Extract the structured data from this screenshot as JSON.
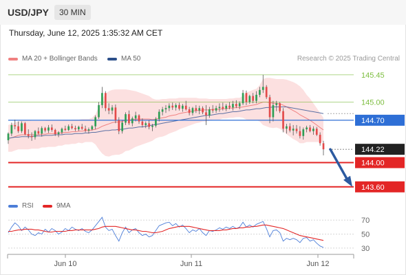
{
  "header": {
    "pair": "USD/JPY",
    "timeframe": "30 MIN"
  },
  "datetime": "Thursday, June 12, 2025 1:35:32 AM CET",
  "legend": {
    "ma20": {
      "label": "MA 20 + Bollinger Bands",
      "color": "#f08080"
    },
    "ma50": {
      "label": "MA 50",
      "color": "#2c4f8a"
    }
  },
  "copyright": "Research © 2025 Trading Central",
  "rsi_legend": {
    "rsi": {
      "label": "RSI",
      "color": "#4d7ed8"
    },
    "ma": {
      "label": "9MA",
      "color": "#e32626"
    }
  },
  "chart_data": [
    {
      "type": "candlestick",
      "title": "USD/JPY",
      "x_labels": [
        "Jun 10",
        "Jun 11",
        "Jun 12"
      ],
      "ylim": [
        143.45,
        145.55
      ],
      "levels": [
        {
          "label": "145.45",
          "value": 145.45,
          "color": "#7cbd3e",
          "kind": "resistance"
        },
        {
          "label": "145.00",
          "value": 145.0,
          "color": "#7cbd3e",
          "kind": "resistance"
        },
        {
          "label": "144.70",
          "value": 144.7,
          "color": "#2e6fd6",
          "kind": "pivot"
        },
        {
          "label": "144.22",
          "value": 144.22,
          "color": "#222222",
          "kind": "last"
        },
        {
          "label": "144.00",
          "value": 144.0,
          "color": "#e32626",
          "kind": "target"
        },
        {
          "label": "143.60",
          "value": 143.6,
          "color": "#e32626",
          "kind": "target"
        }
      ],
      "candles": [
        [
          144.37,
          144.5,
          144.31,
          144.48
        ],
        [
          144.48,
          144.66,
          144.44,
          144.62
        ],
        [
          144.62,
          144.71,
          144.55,
          144.6
        ],
        [
          144.6,
          144.68,
          144.49,
          144.52
        ],
        [
          144.52,
          144.68,
          144.49,
          144.65
        ],
        [
          144.65,
          144.67,
          144.45,
          144.47
        ],
        [
          144.47,
          144.55,
          144.4,
          144.44
        ],
        [
          144.44,
          144.5,
          144.36,
          144.42
        ],
        [
          144.42,
          144.54,
          144.38,
          144.52
        ],
        [
          144.52,
          144.58,
          144.46,
          144.48
        ],
        [
          144.48,
          144.6,
          144.43,
          144.57
        ],
        [
          144.57,
          144.59,
          144.5,
          144.53
        ],
        [
          144.53,
          144.62,
          144.49,
          144.58
        ],
        [
          144.58,
          144.63,
          144.51,
          144.54
        ],
        [
          144.54,
          144.56,
          144.44,
          144.47
        ],
        [
          144.47,
          144.52,
          144.42,
          144.5
        ],
        [
          144.5,
          144.58,
          144.47,
          144.56
        ],
        [
          144.56,
          144.61,
          144.52,
          144.54
        ],
        [
          144.54,
          144.63,
          144.52,
          144.6
        ],
        [
          144.6,
          144.64,
          144.55,
          144.57
        ],
        [
          144.57,
          144.61,
          144.52,
          144.55
        ],
        [
          144.55,
          144.61,
          144.52,
          144.59
        ],
        [
          144.59,
          144.64,
          144.54,
          144.56
        ],
        [
          144.56,
          144.61,
          144.5,
          144.53
        ],
        [
          144.53,
          144.58,
          144.48,
          144.55
        ],
        [
          144.55,
          144.62,
          144.53,
          144.6
        ],
        [
          144.6,
          144.78,
          144.55,
          144.75
        ],
        [
          144.75,
          145.0,
          144.72,
          144.95
        ],
        [
          144.95,
          145.25,
          144.9,
          145.15
        ],
        [
          145.15,
          145.18,
          144.85,
          144.9
        ],
        [
          144.9,
          144.98,
          144.8,
          144.86
        ],
        [
          144.86,
          144.95,
          144.8,
          144.91
        ],
        [
          144.91,
          144.96,
          144.65,
          144.7
        ],
        [
          144.7,
          144.75,
          144.47,
          144.52
        ],
        [
          144.52,
          144.7,
          144.48,
          144.66
        ],
        [
          144.66,
          144.83,
          144.62,
          144.8
        ],
        [
          144.8,
          144.86,
          144.62,
          144.65
        ],
        [
          144.65,
          144.76,
          144.6,
          144.73
        ],
        [
          144.73,
          144.84,
          144.68,
          144.78
        ],
        [
          144.78,
          144.8,
          144.64,
          144.68
        ],
        [
          144.68,
          144.73,
          144.58,
          144.62
        ],
        [
          144.62,
          144.68,
          144.57,
          144.65
        ],
        [
          144.65,
          144.7,
          144.55,
          144.59
        ],
        [
          144.59,
          144.64,
          144.52,
          144.61
        ],
        [
          144.61,
          144.75,
          144.58,
          144.72
        ],
        [
          144.72,
          144.88,
          144.68,
          144.84
        ],
        [
          144.84,
          144.92,
          144.78,
          144.88
        ],
        [
          144.88,
          144.95,
          144.82,
          144.9
        ],
        [
          144.9,
          144.98,
          144.85,
          144.94
        ],
        [
          144.94,
          144.99,
          144.87,
          144.91
        ],
        [
          144.91,
          144.98,
          144.86,
          144.95
        ],
        [
          144.95,
          144.99,
          144.86,
          144.89
        ],
        [
          144.89,
          144.97,
          144.84,
          144.94
        ],
        [
          144.94,
          145.02,
          144.86,
          144.88
        ],
        [
          144.88,
          144.92,
          144.78,
          144.82
        ],
        [
          144.82,
          144.92,
          144.78,
          144.9
        ],
        [
          144.9,
          144.95,
          144.82,
          144.86
        ],
        [
          144.86,
          144.94,
          144.8,
          144.9
        ],
        [
          144.9,
          144.93,
          144.8,
          144.83
        ],
        [
          144.83,
          144.95,
          144.62,
          144.78
        ],
        [
          144.78,
          144.92,
          144.74,
          144.88
        ],
        [
          144.88,
          144.95,
          144.82,
          144.86
        ],
        [
          144.86,
          144.94,
          144.82,
          144.9
        ],
        [
          144.9,
          144.98,
          144.84,
          144.92
        ],
        [
          144.92,
          144.99,
          144.86,
          144.89
        ],
        [
          144.89,
          144.97,
          144.85,
          144.94
        ],
        [
          144.94,
          145.0,
          144.88,
          144.91
        ],
        [
          144.91,
          145.02,
          144.86,
          144.97
        ],
        [
          144.97,
          145.03,
          144.9,
          144.93
        ],
        [
          144.93,
          145.01,
          144.88,
          144.98
        ],
        [
          144.98,
          145.2,
          144.95,
          145.15
        ],
        [
          145.15,
          145.19,
          144.95,
          145.0
        ],
        [
          145.0,
          145.12,
          144.97,
          145.1
        ],
        [
          145.1,
          145.15,
          144.98,
          145.02
        ],
        [
          145.02,
          145.18,
          144.98,
          145.12
        ],
        [
          145.12,
          145.25,
          145.08,
          145.2
        ],
        [
          145.2,
          145.45,
          145.15,
          145.25
        ],
        [
          145.25,
          145.28,
          145.05,
          145.08
        ],
        [
          145.08,
          145.12,
          144.65,
          144.75
        ],
        [
          144.75,
          145.02,
          144.68,
          144.95
        ],
        [
          144.95,
          145.02,
          144.85,
          144.98
        ],
        [
          144.98,
          145.0,
          144.82,
          144.85
        ],
        [
          144.85,
          144.9,
          144.5,
          144.56
        ],
        [
          144.56,
          144.64,
          144.48,
          144.6
        ],
        [
          144.6,
          144.65,
          144.5,
          144.53
        ],
        [
          144.53,
          144.62,
          144.45,
          144.56
        ],
        [
          144.56,
          144.62,
          144.48,
          144.52
        ],
        [
          144.52,
          144.6,
          144.4,
          144.44
        ],
        [
          144.44,
          144.58,
          144.38,
          144.55
        ],
        [
          144.55,
          144.61,
          144.5,
          144.58
        ],
        [
          144.58,
          144.62,
          144.5,
          144.52
        ],
        [
          144.52,
          144.6,
          144.46,
          144.56
        ],
        [
          144.56,
          144.59,
          144.44,
          144.46
        ],
        [
          144.46,
          144.5,
          144.28,
          144.32
        ],
        [
          144.32,
          144.36,
          144.12,
          144.22
        ]
      ],
      "ma20": [
        144.4,
        144.41,
        144.43,
        144.45,
        144.46,
        144.46,
        144.46,
        144.46,
        144.46,
        144.46,
        144.47,
        144.47,
        144.48,
        144.48,
        144.48,
        144.49,
        144.49,
        144.5,
        144.5,
        144.51,
        144.51,
        144.52,
        144.52,
        144.53,
        144.53,
        144.54,
        144.55,
        144.57,
        144.6,
        144.62,
        144.64,
        144.66,
        144.67,
        144.67,
        144.68,
        144.7,
        144.7,
        144.71,
        144.72,
        144.72,
        144.72,
        144.72,
        144.72,
        144.71,
        144.72,
        144.73,
        144.74,
        144.75,
        144.77,
        144.78,
        144.79,
        144.81,
        144.82,
        144.83,
        144.84,
        144.85,
        144.86,
        144.86,
        144.87,
        144.87,
        144.87,
        144.88,
        144.88,
        144.88,
        144.89,
        144.89,
        144.9,
        144.9,
        144.91,
        144.91,
        144.92,
        144.93,
        144.94,
        144.95,
        144.96,
        144.98,
        145.0,
        145.0,
        144.99,
        144.98,
        144.98,
        144.97,
        144.95,
        144.92,
        144.89,
        144.86,
        144.83,
        144.79,
        144.76,
        144.73,
        144.7,
        144.66,
        144.62,
        144.58,
        144.54
      ],
      "bb_upper": [
        144.62,
        144.64,
        144.66,
        144.68,
        144.7,
        144.7,
        144.7,
        144.69,
        144.69,
        144.69,
        144.69,
        144.69,
        144.7,
        144.7,
        144.7,
        144.7,
        144.7,
        144.7,
        144.7,
        144.71,
        144.71,
        144.71,
        144.72,
        144.72,
        144.72,
        144.74,
        144.8,
        144.92,
        145.05,
        145.13,
        145.18,
        145.2,
        145.21,
        145.21,
        145.21,
        145.21,
        145.2,
        145.19,
        145.18,
        145.16,
        145.14,
        145.12,
        145.1,
        145.06,
        145.04,
        145.04,
        145.05,
        145.05,
        145.06,
        145.06,
        145.06,
        145.07,
        145.07,
        145.07,
        145.07,
        145.07,
        145.07,
        145.06,
        145.06,
        145.06,
        145.05,
        145.05,
        145.05,
        145.05,
        145.05,
        145.05,
        145.06,
        145.06,
        145.07,
        145.07,
        145.1,
        145.15,
        145.18,
        145.2,
        145.22,
        145.28,
        145.38,
        145.4,
        145.4,
        145.39,
        145.38,
        145.38,
        145.38,
        145.37,
        145.35,
        145.33,
        145.3,
        145.26,
        145.2,
        145.12,
        145.06,
        144.98,
        144.9,
        144.82,
        144.74
      ],
      "bb_lower": [
        144.18,
        144.18,
        144.2,
        144.22,
        144.22,
        144.22,
        144.22,
        144.23,
        144.23,
        144.23,
        144.25,
        144.25,
        144.26,
        144.26,
        144.26,
        144.28,
        144.28,
        144.3,
        144.3,
        144.31,
        144.31,
        144.33,
        144.32,
        144.34,
        144.34,
        144.34,
        144.3,
        144.22,
        144.15,
        144.11,
        144.1,
        144.12,
        144.13,
        144.13,
        144.15,
        144.19,
        144.2,
        144.23,
        144.26,
        144.28,
        144.3,
        144.32,
        144.34,
        144.36,
        144.4,
        144.42,
        144.43,
        144.45,
        144.48,
        144.5,
        144.52,
        144.55,
        144.57,
        144.59,
        144.61,
        144.63,
        144.65,
        144.66,
        144.68,
        144.68,
        144.69,
        144.71,
        144.71,
        144.71,
        144.73,
        144.73,
        144.74,
        144.74,
        144.75,
        144.75,
        144.74,
        144.71,
        144.7,
        144.7,
        144.7,
        144.68,
        144.62,
        144.6,
        144.58,
        144.57,
        144.58,
        144.56,
        144.52,
        144.47,
        144.43,
        144.39,
        144.36,
        144.32,
        144.32,
        144.34,
        144.34,
        144.34,
        144.34,
        144.34,
        144.34
      ],
      "ma50": [
        144.4,
        144.41,
        144.42,
        144.42,
        144.43,
        144.43,
        144.43,
        144.43,
        144.44,
        144.44,
        144.44,
        144.45,
        144.45,
        144.45,
        144.46,
        144.46,
        144.46,
        144.47,
        144.47,
        144.47,
        144.48,
        144.48,
        144.48,
        144.49,
        144.49,
        144.5,
        144.5,
        144.51,
        144.52,
        144.53,
        144.53,
        144.54,
        144.54,
        144.55,
        144.55,
        144.56,
        144.57,
        144.57,
        144.58,
        144.59,
        144.59,
        144.6,
        144.61,
        144.62,
        144.63,
        144.64,
        144.65,
        144.66,
        144.67,
        144.68,
        144.69,
        144.7,
        144.71,
        144.72,
        144.73,
        144.74,
        144.75,
        144.76,
        144.77,
        144.78,
        144.78,
        144.79,
        144.8,
        144.81,
        144.81,
        144.82,
        144.83,
        144.84,
        144.84,
        144.85,
        144.86,
        144.87,
        144.87,
        144.88,
        144.89,
        144.89,
        144.9,
        144.91,
        144.91,
        144.92,
        144.92,
        144.92,
        144.92,
        144.92,
        144.91,
        144.9,
        144.89,
        144.88,
        144.87,
        144.86,
        144.85,
        144.84,
        144.83,
        144.82,
        144.81
      ],
      "forecast": {
        "from": 144.22,
        "to": 143.6
      }
    },
    {
      "type": "line",
      "title": "RSI",
      "ylim": [
        25,
        78
      ],
      "yticks": [
        70,
        50,
        30
      ],
      "series": [
        {
          "name": "RSI",
          "color": "#4d7ed8",
          "values": [
            52,
            60,
            66,
            62,
            55,
            60,
            56,
            50,
            48,
            52,
            50,
            57,
            53,
            58,
            55,
            50,
            53,
            58,
            55,
            60,
            57,
            55,
            58,
            54,
            52,
            56,
            62,
            68,
            74,
            60,
            55,
            57,
            48,
            40,
            52,
            60,
            52,
            56,
            58,
            52,
            48,
            50,
            46,
            48,
            55,
            62,
            64,
            66,
            67,
            62,
            65,
            60,
            63,
            58,
            52,
            56,
            54,
            58,
            52,
            48,
            55,
            54,
            56,
            59,
            57,
            60,
            58,
            61,
            58,
            60,
            67,
            60,
            63,
            60,
            64,
            66,
            68,
            58,
            46,
            55,
            56,
            52,
            40,
            44,
            42,
            44,
            42,
            38,
            44,
            45,
            40,
            42,
            37,
            33,
            31
          ]
        },
        {
          "name": "9MA",
          "color": "#e32626",
          "values": [
            54,
            54,
            55,
            56,
            56,
            57,
            57,
            57,
            56,
            56,
            55,
            54,
            53,
            53,
            54,
            54,
            54,
            54,
            55,
            55,
            56,
            56,
            56,
            56,
            56,
            56,
            57,
            58,
            60,
            61,
            61,
            61,
            61,
            60,
            59,
            58,
            57,
            56,
            56,
            55,
            54,
            54,
            53,
            52,
            52,
            53,
            54,
            56,
            58,
            59,
            60,
            61,
            61,
            61,
            61,
            60,
            59,
            58,
            57,
            56,
            55,
            55,
            55,
            55,
            56,
            56,
            57,
            58,
            58,
            59,
            59,
            60,
            60,
            61,
            61,
            62,
            63,
            63,
            62,
            61,
            60,
            59,
            58,
            56,
            54,
            52,
            50,
            48,
            47,
            46,
            45,
            44,
            43,
            42,
            41
          ]
        }
      ]
    }
  ]
}
